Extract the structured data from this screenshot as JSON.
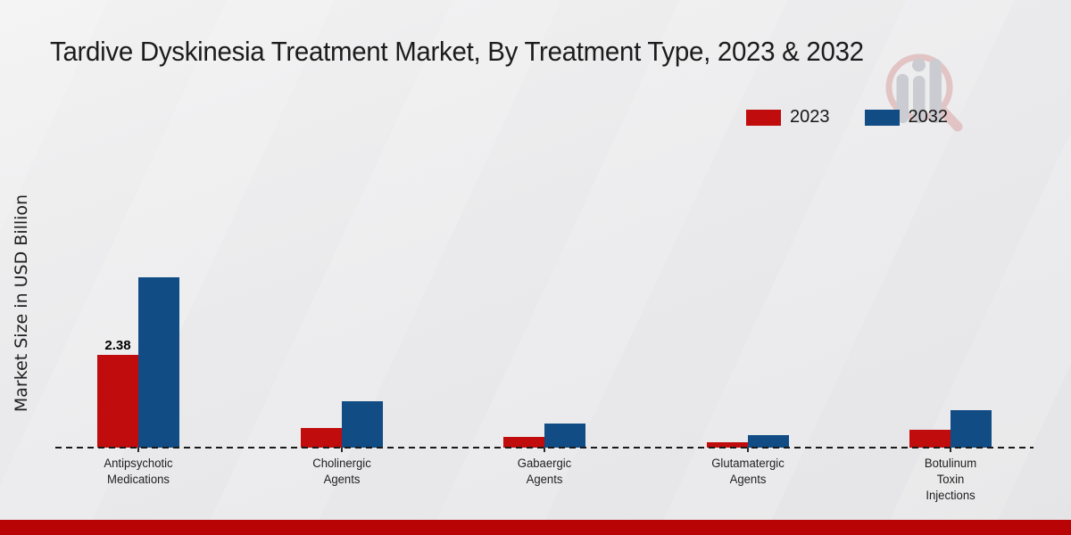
{
  "chart_data": {
    "type": "bar",
    "title": "Tardive Dyskinesia Treatment Market, By Treatment Type, 2023 & 2032",
    "ylabel": "Market Size in USD Billion",
    "xlabel": "",
    "categories": [
      "Antipsychotic Medications",
      "Cholinergic Agents",
      "Gabaergic Agents",
      "Glutamatergic Agents",
      "Botulinum Toxin Injections"
    ],
    "category_label_lines": [
      [
        "Antipsychotic",
        "Medications"
      ],
      [
        "Cholinergic",
        "Agents"
      ],
      [
        "Gabaergic",
        "Agents"
      ],
      [
        "Glutamatergic",
        "Agents"
      ],
      [
        "Botulinum",
        "Toxin",
        "Injections"
      ]
    ],
    "series": [
      {
        "name": "2023",
        "color": "#c00c0c",
        "values": [
          2.38,
          0.51,
          0.27,
          0.13,
          0.45
        ]
      },
      {
        "name": "2032",
        "color": "#114c85",
        "values": [
          4.38,
          1.19,
          0.63,
          0.31,
          0.97
        ]
      }
    ],
    "annotations": [
      {
        "category_index": 0,
        "series_index": 0,
        "text": "2.38"
      }
    ],
    "legend": {
      "position": "top-right",
      "entries": [
        "2023",
        "2032"
      ]
    },
    "grid": false,
    "yaxis_ticks_visible": false,
    "ylim": [
      0,
      5
    ],
    "baseline": {
      "style": "dashed",
      "color": "#1a1a1a"
    }
  },
  "page": {
    "footer_bar_color": "#b80404",
    "watermark_icon": "magnifier-bar-chart-logo"
  }
}
